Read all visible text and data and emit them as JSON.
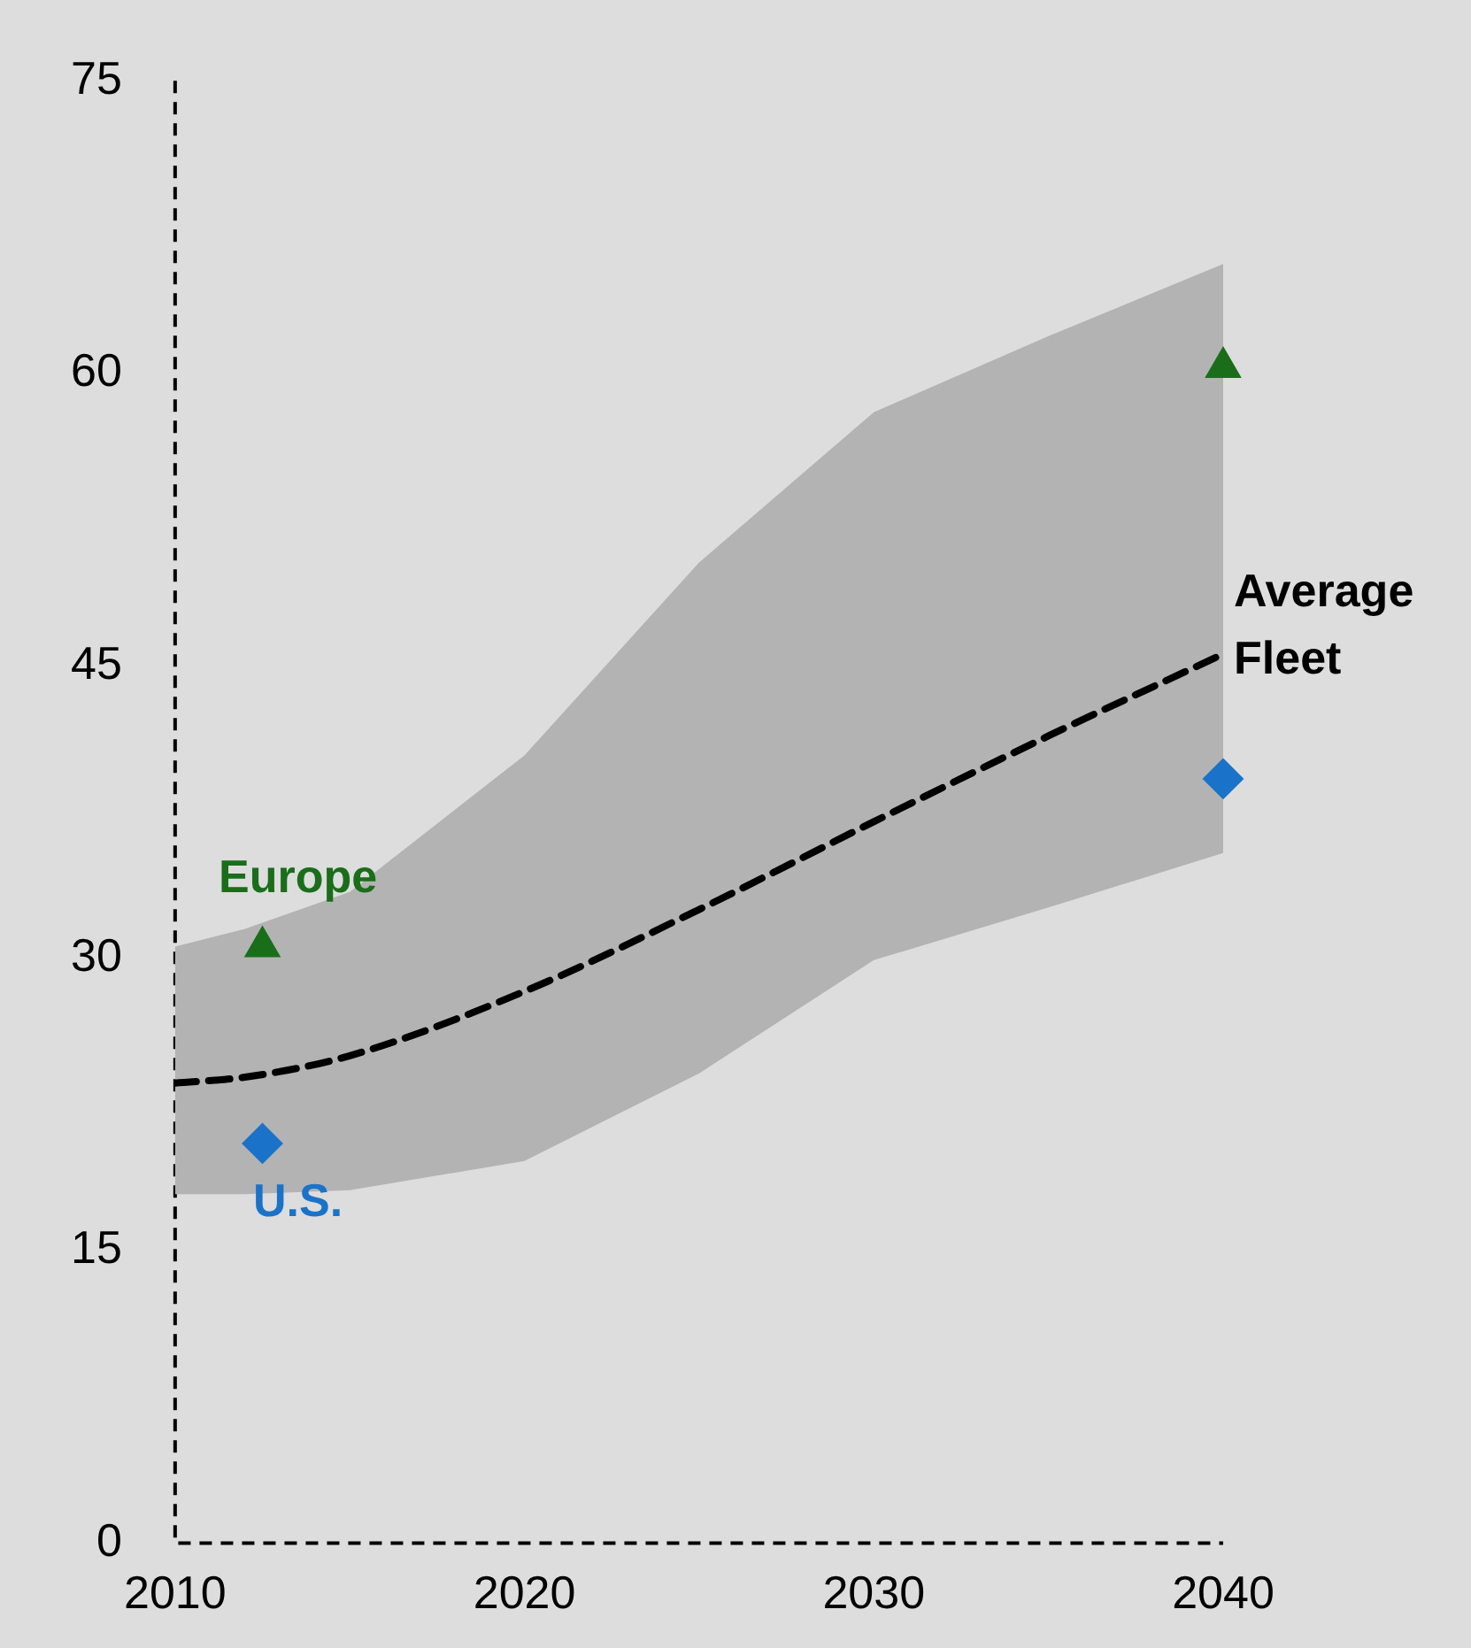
{
  "chart_data": {
    "type": "line",
    "series": [
      {
        "name": "Average Fleet",
        "type": "line",
        "color": "#000000",
        "line_style": "dashed",
        "marker": "none",
        "x": [
          2010,
          2012,
          2015,
          2020,
          2025,
          2030,
          2035,
          2040
        ],
        "values": [
          23.6,
          23.9,
          25,
          28.3,
          32.5,
          37,
          41.4,
          45.6
        ],
        "lower": [
          17.9,
          17.9,
          18.1,
          19.6,
          24.1,
          29.9,
          32.6,
          35.4
        ],
        "upper": [
          30.6,
          31.5,
          33.4,
          40.4,
          50.3,
          58,
          61.9,
          65.6
        ]
      },
      {
        "name": "Europe",
        "type": "scatter",
        "color": "#1a6e1a",
        "marker": "triangle",
        "x": [
          2012.5,
          2040
        ],
        "values": [
          30.6,
          60.3
        ]
      },
      {
        "name": "U.S.",
        "type": "scatter",
        "color": "#1a73c8",
        "marker": "diamond",
        "x": [
          2012.5,
          2040
        ],
        "values": [
          20.5,
          39.2
        ]
      }
    ],
    "xlim": [
      2010,
      2040
    ],
    "xticks": [
      2010,
      2020,
      2030,
      2040
    ],
    "ylim": [
      0,
      75
    ],
    "yticks": [
      0,
      15,
      30,
      45,
      60,
      75
    ],
    "grid": false,
    "legend": false
  }
}
